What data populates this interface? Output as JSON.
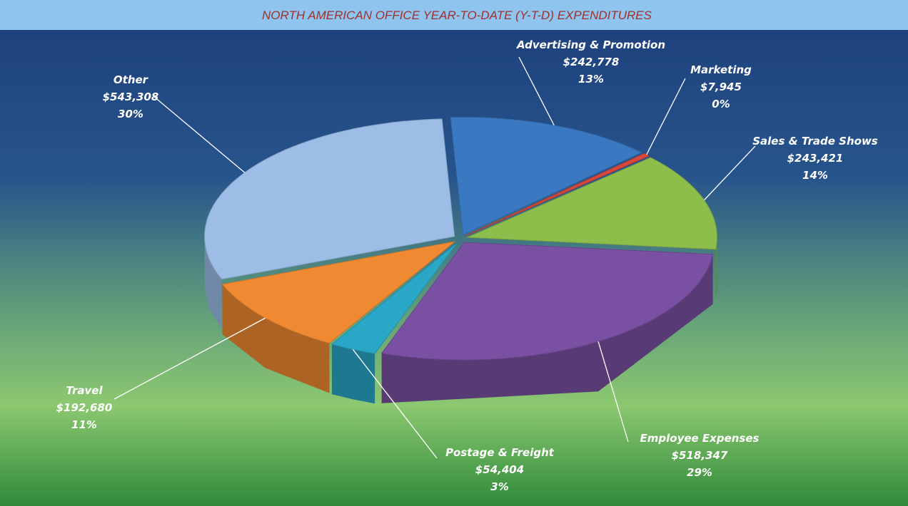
{
  "chart_data": {
    "type": "pie",
    "title": "NORTH AMERICAN OFFICE  YEAR-TO-DATE (Y-T-D) EXPENDITURES",
    "categories": [
      "Advertising & Promotion",
      "Marketing",
      "Sales & Trade Shows",
      "Employee Expenses",
      "Postage & Freight",
      "Travel",
      "Other"
    ],
    "values": [
      242778,
      7945,
      243421,
      518347,
      54404,
      192680,
      543308
    ],
    "value_labels": [
      "$242,778",
      "$7,945",
      "$243,421",
      "$518,347",
      "$54,404",
      "$192,680",
      "$543,308"
    ],
    "percent_labels": [
      "13%",
      "0%",
      "14%",
      "29%",
      "3%",
      "11%",
      "30%"
    ],
    "colors": [
      "#3b78c2",
      "#d9473a",
      "#8dbd4a",
      "#7a50a2",
      "#2aa6c6",
      "#ef8a32",
      "#9dbde6"
    ]
  }
}
